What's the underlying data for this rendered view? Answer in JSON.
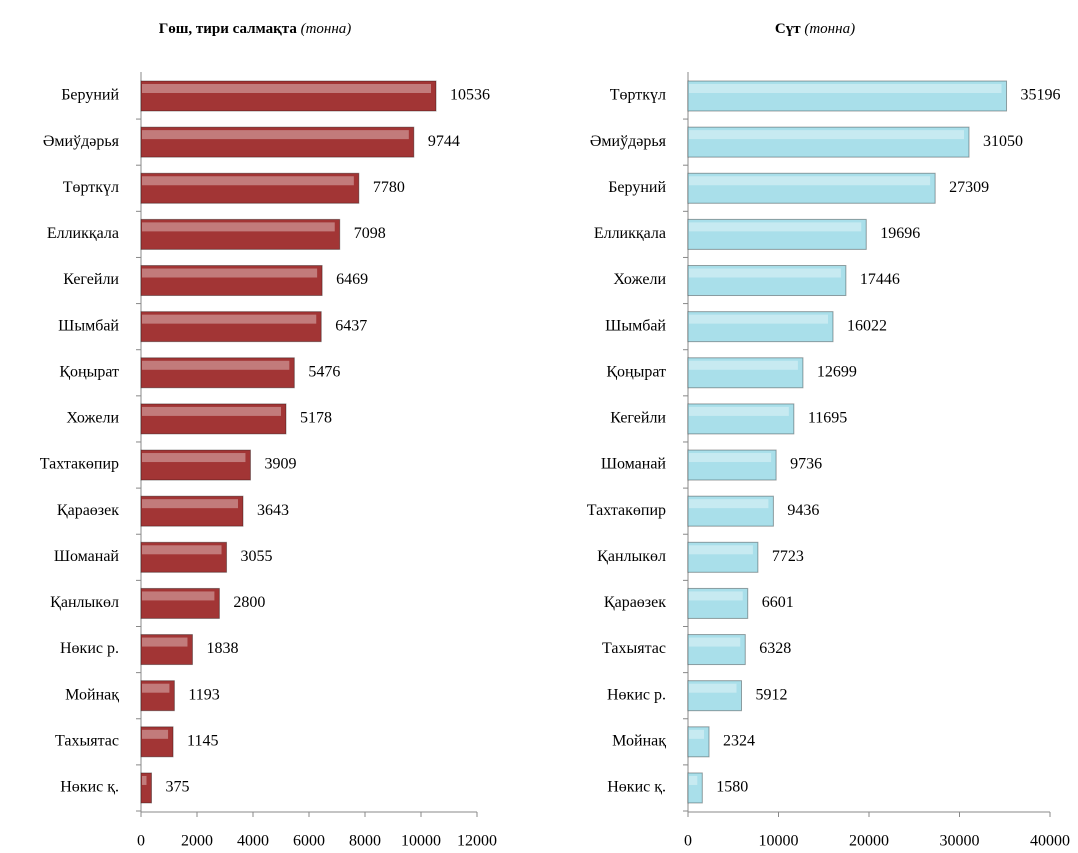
{
  "chart_data": [
    {
      "type": "bar",
      "orientation": "horizontal",
      "title": "Гөш, тири салмақта",
      "unit": "(тонна)",
      "categories": [
        "Беруний",
        "Әмиўдәрья",
        "Төрткүл",
        "Елликқала",
        "Кегейли",
        "Шымбай",
        "Қоңырат",
        "Хожели",
        "Тахтакөпир",
        "Қараөзек",
        "Шоманай",
        "Қанлыкөл",
        "Нөкис р.",
        "Мойнақ",
        "Тахыятас",
        "Нөкис қ."
      ],
      "values": [
        10536,
        9744,
        7780,
        7098,
        6469,
        6437,
        5476,
        5178,
        3909,
        3643,
        3055,
        2800,
        1838,
        1193,
        1145,
        375
      ],
      "color": "#a23535",
      "xlim": [
        0,
        12000
      ],
      "xticks": [
        0,
        2000,
        4000,
        6000,
        8000,
        10000,
        12000
      ]
    },
    {
      "type": "bar",
      "orientation": "horizontal",
      "title": "Сүт",
      "unit": "(тонна)",
      "categories": [
        "Төрткүл",
        "Әмиўдәрья",
        "Беруний",
        "Елликқала",
        "Хожели",
        "Шымбай",
        "Қоңырат",
        "Кегейли",
        "Шоманай",
        "Тахтакөпир",
        "Қанлыкөл",
        "Қараөзек",
        "Тахыятас",
        "Нөкис р.",
        "Мойнақ",
        "Нөкис қ."
      ],
      "values": [
        35196,
        31050,
        27309,
        19696,
        17446,
        16022,
        12699,
        11695,
        9736,
        9436,
        7723,
        6601,
        6328,
        5912,
        2324,
        1580
      ],
      "color": "#a9dfea",
      "xlim": [
        0,
        40000
      ],
      "xticks": [
        0,
        10000,
        20000,
        30000,
        40000
      ]
    }
  ]
}
